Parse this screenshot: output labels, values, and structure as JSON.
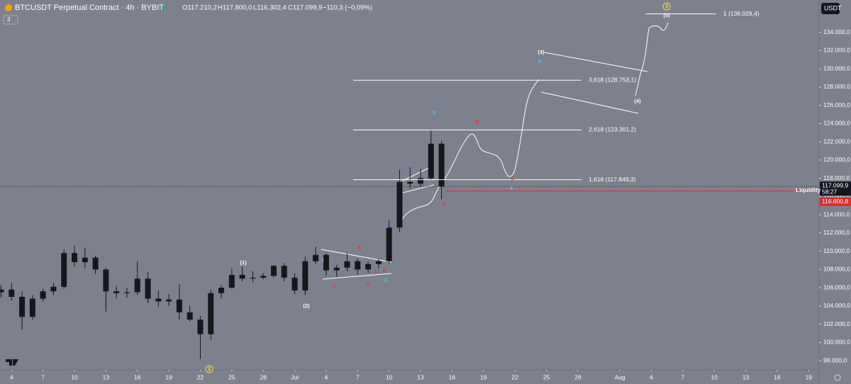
{
  "header": {
    "symbol": "BTCUSDT Perpetual Contract · 4h · BYBIT",
    "open": "O117.210,2",
    "high": "H117.800,0",
    "low": "L116.302,4",
    "close": "C117.099,9",
    "change": "−110,3 (−0,09%)",
    "indicators": "3",
    "currency": "USDT"
  },
  "chart_data": {
    "type": "candlestick",
    "x": [
      3,
      4,
      5,
      6,
      7,
      8,
      9,
      10,
      11,
      12,
      13,
      14,
      15,
      16,
      17,
      18,
      19,
      20,
      21,
      22,
      23,
      24,
      25,
      26,
      27,
      28,
      29,
      30,
      31,
      32,
      33,
      34,
      35,
      36,
      37,
      38,
      39,
      40,
      41,
      42,
      43,
      44,
      45
    ],
    "open": [
      105500,
      105800,
      105000,
      102800,
      104800,
      105600,
      106100,
      109800,
      108800,
      109300,
      108000,
      105600,
      105400,
      105500,
      107000,
      104800,
      104500,
      104700,
      103300,
      102500,
      100900,
      105400,
      106000,
      107400,
      107000,
      107100,
      107300,
      108400,
      107100,
      105700,
      108900,
      109600,
      107900,
      108200,
      108900,
      108000,
      108600,
      108900,
      112600,
      117600,
      117400,
      118000,
      121800
    ],
    "high": [
      106300,
      106500,
      105600,
      105200,
      105900,
      106500,
      110200,
      110600,
      110400,
      109500,
      108200,
      106200,
      106000,
      108900,
      107700,
      105700,
      105300,
      106400,
      104000,
      102900,
      105800,
      106300,
      108100,
      108300,
      107800,
      107600,
      108500,
      108700,
      107600,
      109400,
      110500,
      109800,
      108500,
      109800,
      109200,
      108900,
      109200,
      113400,
      118900,
      119200,
      119000,
      123200,
      122100
    ],
    "low": [
      104900,
      104600,
      101400,
      102500,
      104500,
      105200,
      105900,
      108300,
      108100,
      107500,
      103400,
      104800,
      104900,
      105200,
      104300,
      103900,
      104000,
      102500,
      102300,
      98200,
      100300,
      104800,
      105900,
      106700,
      106600,
      106900,
      107100,
      106700,
      105300,
      105200,
      108600,
      107300,
      107200,
      107800,
      107400,
      107600,
      108100,
      108700,
      112100,
      116900,
      117100,
      117900,
      115700
    ],
    "close": [
      105800,
      105000,
      102800,
      104800,
      105600,
      106100,
      109800,
      108800,
      109300,
      108000,
      105600,
      105400,
      105500,
      107000,
      104800,
      104500,
      104700,
      103300,
      102500,
      100900,
      105400,
      106000,
      107400,
      107000,
      107100,
      107300,
      108400,
      107100,
      105700,
      108900,
      109600,
      107900,
      108200,
      108900,
      108000,
      108600,
      108900,
      112600,
      117600,
      117400,
      118000,
      121800,
      117100
    ],
    "color": "#16171c",
    "xlim": [
      2.9,
      81
    ],
    "xticks": [
      4,
      7,
      10,
      13,
      16,
      19,
      22,
      25,
      28,
      {
        "value": 31,
        "label": "Jul"
      },
      {
        "value": 34,
        "label": "4"
      },
      {
        "value": 37,
        "label": "7"
      },
      {
        "value": 40,
        "label": "10"
      },
      {
        "value": 43,
        "label": "13"
      },
      {
        "value": 46,
        "label": "16"
      },
      {
        "value": 49,
        "label": "19"
      },
      {
        "value": 52,
        "label": "22"
      },
      {
        "value": 55,
        "label": "25"
      },
      {
        "value": 58,
        "label": "28"
      },
      {
        "value": 62,
        "label": "Aug"
      },
      {
        "value": 65,
        "label": "4"
      },
      {
        "value": 68,
        "label": "7"
      },
      {
        "value": 71,
        "label": "10"
      },
      {
        "value": 74,
        "label": "13"
      },
      {
        "value": 77,
        "label": "16"
      },
      {
        "value": 80,
        "label": "19"
      }
    ],
    "ylim": [
      97150,
      137550
    ],
    "yticks": [
      {
        "value": 98000,
        "label": "98.000,0"
      },
      {
        "value": 100000,
        "label": "100.000,0"
      },
      {
        "value": 102000,
        "label": "102.000,0"
      },
      {
        "value": 104000,
        "label": "104.000,0"
      },
      {
        "value": 106000,
        "label": "106.000,0"
      },
      {
        "value": 108000,
        "label": "108.000,0"
      },
      {
        "value": 110000,
        "label": "110.000,0"
      },
      {
        "value": 112000,
        "label": "112.000,0"
      },
      {
        "value": 114000,
        "label": "114.000,0"
      },
      {
        "value": 116000,
        "label": "116.000,0"
      },
      {
        "value": 118000,
        "label": "118.000,0"
      },
      {
        "value": 120000,
        "label": "120.000,0"
      },
      {
        "value": 122000,
        "label": "122.000,0"
      },
      {
        "value": 124000,
        "label": "124.000,0"
      },
      {
        "value": 126000,
        "label": "126.000,0"
      },
      {
        "value": 128000,
        "label": "128.000,0"
      },
      {
        "value": 130000,
        "label": "130.000,0"
      },
      {
        "value": 132000,
        "label": "132.000,0"
      },
      {
        "value": 134000,
        "label": "134.000,0"
      }
    ],
    "price_line": {
      "value": 117099.9,
      "label": "117.099,9"
    },
    "countdown": "58:27",
    "liquidity": {
      "name": "Liquidity",
      "value": 116600.8,
      "label": "116.600,8"
    },
    "fib_levels": [
      {
        "value": 136029.4,
        "label": "1 (136.029,4)"
      },
      {
        "value": 128753.1,
        "label": "3,618 (128.753,1)"
      },
      {
        "value": 123301.2,
        "label": "2,618 (123.301,2)"
      },
      {
        "value": 117849.3,
        "label": "1,618 (117.849,3)"
      }
    ],
    "wave_labels": [
      "(1)",
      "(2)",
      "2",
      "1",
      "A",
      "B",
      "C",
      "D",
      "E",
      "2",
      "1",
      "2",
      "3",
      "3",
      "5",
      "B",
      "C",
      "4",
      "A",
      "(3)",
      "5",
      "(4)",
      "(5)",
      "3"
    ]
  }
}
